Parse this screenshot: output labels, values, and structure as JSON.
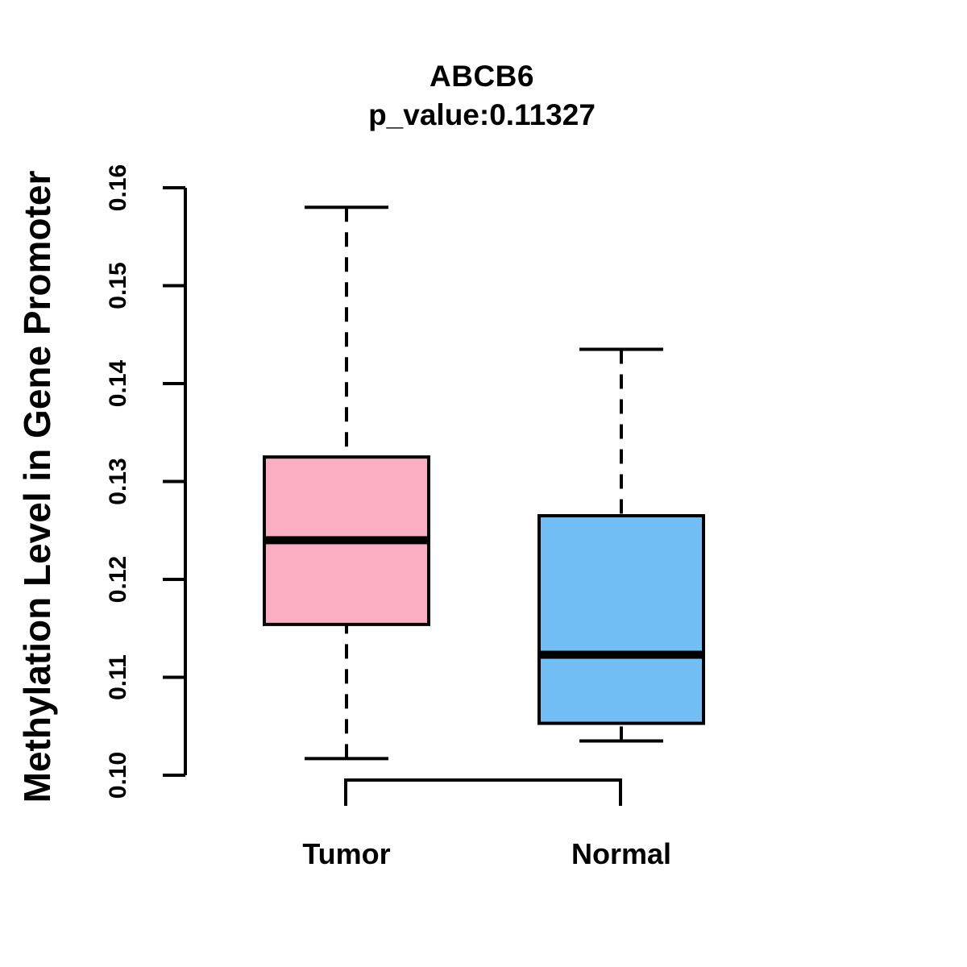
{
  "chart": {
    "title": "ABCB6",
    "subtitle": "p_value:0.11327",
    "ylabel": "Methylation Level in Gene Promoter"
  },
  "chart_data": {
    "type": "boxplot",
    "title": "ABCB6",
    "subtitle": "p_value:0.11327",
    "gene": "ABCB6",
    "p_value": "0.11327",
    "ylabel": "Methylation Level in Gene Promoter",
    "xlabel": "",
    "categories": [
      "Tumor",
      "Normal"
    ],
    "ylim": [
      0.1,
      0.16
    ],
    "yticks": [
      "0.10",
      "0.11",
      "0.12",
      "0.13",
      "0.14",
      "0.15",
      "0.16"
    ],
    "grid": false,
    "legend": null,
    "series": [
      {
        "name": "Tumor",
        "color": "#FBAEC2",
        "border_color": "#000000",
        "whisker_low": 0.1017,
        "q1": 0.1154,
        "median": 0.124,
        "q3": 0.1325,
        "whisker_high": 0.158
      },
      {
        "name": "Normal",
        "color": "#73BEF4",
        "border_color": "#000000",
        "whisker_low": 0.1035,
        "q1": 0.1053,
        "median": 0.1123,
        "q3": 0.1265,
        "whisker_high": 0.1435
      }
    ]
  }
}
